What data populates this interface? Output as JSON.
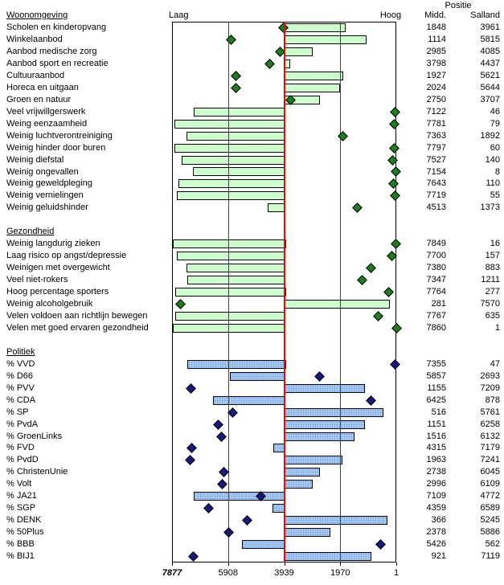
{
  "header": {
    "positie": "Positie",
    "midd": "Midd.",
    "salland": "Salland",
    "laag": "Laag",
    "hoog": "Hoog"
  },
  "chart_data": {
    "type": "bar",
    "title": "Positie Midden vs Salland per indicator",
    "orientation": "horizontal",
    "axis": {
      "ticks": [
        7877,
        5908,
        3939,
        1970,
        1
      ],
      "min": 1,
      "max": 7877,
      "baseline": 3939,
      "reversed": true,
      "low_label": "Laag",
      "high_label": "Hoog"
    },
    "value_columns": [
      "Midd.",
      "Salland"
    ],
    "bar_represents": "Midd.",
    "diamond_represents": "Salland",
    "colors": {
      "green_bar": "#ccffcc",
      "green_diamond": "#1e7d1e",
      "blue_bar": "#a9cdf8",
      "blue_diamond": "#18187e",
      "baseline_line": "#ff0000"
    },
    "sections": [
      {
        "name": "Woonomgeving",
        "bar_color": "green",
        "rows": [
          {
            "label": "Scholen en kinderopvang",
            "midd": 1848,
            "salland": 3961
          },
          {
            "label": "Winkelaanbod",
            "midd": 1114,
            "salland": 5815
          },
          {
            "label": "Aanbod medische zorg",
            "midd": 2985,
            "salland": 4085
          },
          {
            "label": "Aanbod sport en recreatie",
            "midd": 3798,
            "salland": 4437
          },
          {
            "label": "Cultuuraanbod",
            "midd": 1927,
            "salland": 5621
          },
          {
            "label": "Horeca en uitgaan",
            "midd": 2024,
            "salland": 5644
          },
          {
            "label": "Groen en natuur",
            "midd": 2750,
            "salland": 3707
          },
          {
            "label": "Veel vrijwillgerswerk",
            "midd": 7122,
            "salland": 46
          },
          {
            "label": "Weing eenzaamheid",
            "midd": 7781,
            "salland": 79
          },
          {
            "label": "Weinig luchtverontreiniging",
            "midd": 7363,
            "salland": 1892
          },
          {
            "label": "Weinig hinder door buren",
            "midd": 7797,
            "salland": 60
          },
          {
            "label": "Weinig diefstal",
            "midd": 7527,
            "salland": 140
          },
          {
            "label": "Weinig ongevallen",
            "midd": 7154,
            "salland": 8
          },
          {
            "label": "Weinig geweldpleging",
            "midd": 7643,
            "salland": 110
          },
          {
            "label": "Weinig vernielingen",
            "midd": 7719,
            "salland": 55
          },
          {
            "label": "Weinig geluidshinder",
            "midd": 4513,
            "salland": 1373
          }
        ]
      },
      {
        "name": "Gezondheid",
        "bar_color": "green",
        "rows": [
          {
            "label": "Weinig langdurig zieken",
            "midd": 7849,
            "salland": 16
          },
          {
            "label": "Laag risico op angst/depressie",
            "midd": 7700,
            "salland": 157
          },
          {
            "label": "Weinigen met overgewicht",
            "midd": 7380,
            "salland": 883
          },
          {
            "label": "Veel niet-rokers",
            "midd": 7347,
            "salland": 1211
          },
          {
            "label": "Hoog percentage sporters",
            "midd": 7764,
            "salland": 277
          },
          {
            "label": "Weinig alcoholgebruik",
            "midd": 281,
            "salland": 7570
          },
          {
            "label": "Velen voldoen aan richtlijn bewegen",
            "midd": 7767,
            "salland": 635
          },
          {
            "label": "Velen met goed ervaren gezondheid",
            "midd": 7860,
            "salland": 1
          }
        ]
      },
      {
        "name": "Politiek",
        "bar_color": "blue",
        "rows": [
          {
            "label": "% VVD",
            "midd": 7355,
            "salland": 47
          },
          {
            "label": "% D66",
            "midd": 5857,
            "salland": 2693
          },
          {
            "label": "% PVV",
            "midd": 1155,
            "salland": 7209
          },
          {
            "label": "% CDA",
            "midd": 6425,
            "salland": 878
          },
          {
            "label": "% SP",
            "midd": 516,
            "salland": 5761
          },
          {
            "label": "% PvdA",
            "midd": 1151,
            "salland": 6258
          },
          {
            "label": "% GroenLinks",
            "midd": 1516,
            "salland": 6132
          },
          {
            "label": "% FVD",
            "midd": 4315,
            "salland": 7179
          },
          {
            "label": "% PvdD",
            "midd": 1963,
            "salland": 7241
          },
          {
            "label": "% ChristenUnie",
            "midd": 2738,
            "salland": 6045
          },
          {
            "label": "% Volt",
            "midd": 2996,
            "salland": 6109
          },
          {
            "label": "% JA21",
            "midd": 7109,
            "salland": 4772
          },
          {
            "label": "% SGP",
            "midd": 4359,
            "salland": 6589
          },
          {
            "label": "% DENK",
            "midd": 366,
            "salland": 5245
          },
          {
            "label": "% 50Plus",
            "midd": 2378,
            "salland": 5886
          },
          {
            "label": "% BBB",
            "midd": 5426,
            "salland": 562
          },
          {
            "label": "% BIJ1",
            "midd": 921,
            "salland": 7119
          }
        ]
      }
    ]
  }
}
